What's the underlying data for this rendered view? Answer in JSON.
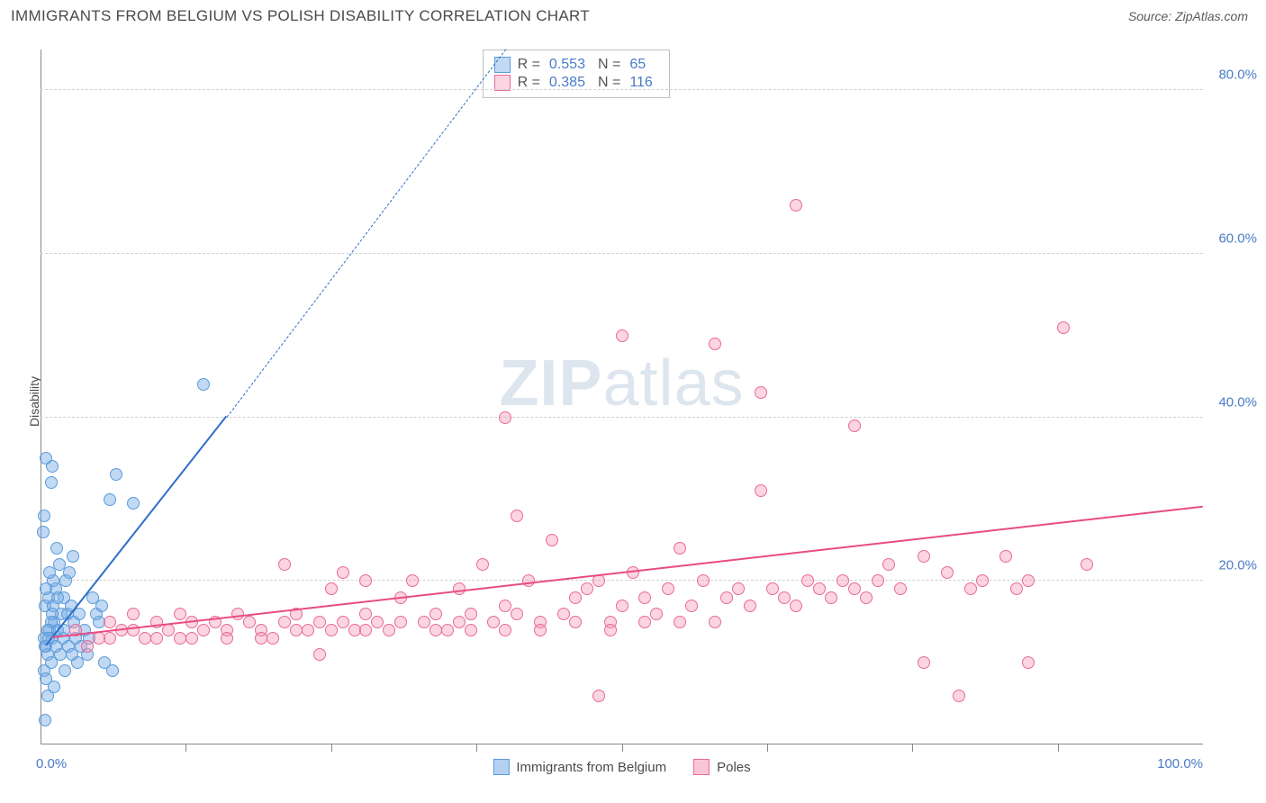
{
  "header": {
    "title": "IMMIGRANTS FROM BELGIUM VS POLISH DISABILITY CORRELATION CHART",
    "source_label": "Source: ZipAtlas.com"
  },
  "ylabel": "Disability",
  "watermark": {
    "bold": "ZIP",
    "rest": "atlas"
  },
  "chart": {
    "type": "scatter",
    "xlim": [
      0,
      100
    ],
    "ylim": [
      0,
      85
    ],
    "yticks": [
      20,
      40,
      60,
      80
    ],
    "ytick_labels": [
      "20.0%",
      "40.0%",
      "60.0%",
      "80.0%"
    ],
    "xticks": [
      0,
      12.5,
      25,
      37.5,
      50,
      62.5,
      75,
      87.5,
      100
    ],
    "x_min_label": "0.0%",
    "x_max_label": "100.0%",
    "grid_color": "#d8d8d8",
    "series": [
      {
        "name": "Immigrants from Belgium",
        "fill": "rgba(120,170,230,0.45)",
        "stroke": "#5a9bd8",
        "line_color": "#2d6fc9",
        "R": "0.553",
        "N": "65",
        "trend": {
          "x1": 0.5,
          "y1": 12,
          "x2": 16,
          "y2": 40
        },
        "trend_dash": {
          "x1": 16,
          "y1": 40,
          "x2": 40,
          "y2": 85
        },
        "points": [
          [
            0.5,
            12
          ],
          [
            0.8,
            14
          ],
          [
            1,
            13
          ],
          [
            1.2,
            15
          ],
          [
            0.6,
            11
          ],
          [
            0.9,
            10
          ],
          [
            1.5,
            14
          ],
          [
            1.8,
            16
          ],
          [
            2,
            18
          ],
          [
            1.3,
            19
          ],
          [
            2.2,
            20
          ],
          [
            2.5,
            21
          ],
          [
            0.4,
            17
          ],
          [
            0.7,
            18
          ],
          [
            1.1,
            20
          ],
          [
            0.3,
            9
          ],
          [
            0.5,
            8
          ],
          [
            3,
            13
          ],
          [
            3.5,
            12
          ],
          [
            4,
            11
          ],
          [
            1.6,
            22
          ],
          [
            2.8,
            23
          ],
          [
            0.2,
            26
          ],
          [
            0.3,
            28
          ],
          [
            0.9,
            32
          ],
          [
            1.0,
            34
          ],
          [
            0.5,
            35
          ],
          [
            6,
            30
          ],
          [
            6.5,
            33
          ],
          [
            8,
            29.5
          ],
          [
            4.5,
            18
          ],
          [
            5,
            15
          ],
          [
            2.3,
            16
          ],
          [
            1.9,
            13
          ],
          [
            0.6,
            6
          ],
          [
            1.2,
            7
          ],
          [
            2.1,
            9
          ],
          [
            3.2,
            10
          ],
          [
            0.4,
            3
          ],
          [
            14,
            44
          ],
          [
            5.5,
            10
          ],
          [
            6.2,
            9
          ],
          [
            3.8,
            14
          ],
          [
            4.2,
            13
          ],
          [
            2.6,
            17
          ],
          [
            1.4,
            24
          ],
          [
            0.8,
            21
          ],
          [
            1.7,
            11
          ],
          [
            2.4,
            12
          ],
          [
            0.3,
            13
          ],
          [
            0.9,
            15
          ],
          [
            1.1,
            17
          ],
          [
            1.5,
            18
          ],
          [
            0.6,
            14
          ],
          [
            0.4,
            12
          ],
          [
            2.0,
            14
          ],
          [
            2.9,
            15
          ],
          [
            3.3,
            16
          ],
          [
            0.5,
            19
          ],
          [
            1.0,
            16
          ],
          [
            1.3,
            12
          ],
          [
            0.7,
            13
          ],
          [
            2.7,
            11
          ],
          [
            4.8,
            16
          ],
          [
            5.3,
            17
          ]
        ]
      },
      {
        "name": "Poles",
        "fill": "rgba(245,150,180,0.40)",
        "stroke": "#e86a98",
        "line_color": "#e94b85",
        "R": "0.385",
        "N": "116",
        "trend": {
          "x1": 1,
          "y1": 13,
          "x2": 100,
          "y2": 29
        },
        "points": [
          [
            3,
            14
          ],
          [
            5,
            13
          ],
          [
            6,
            15
          ],
          [
            7,
            14
          ],
          [
            8,
            16
          ],
          [
            9,
            13
          ],
          [
            10,
            15
          ],
          [
            11,
            14
          ],
          [
            12,
            16
          ],
          [
            12,
            13
          ],
          [
            13,
            15
          ],
          [
            14,
            14
          ],
          [
            15,
            15
          ],
          [
            16,
            14
          ],
          [
            17,
            16
          ],
          [
            18,
            15
          ],
          [
            19,
            14
          ],
          [
            20,
            13
          ],
          [
            21,
            22
          ],
          [
            21,
            15
          ],
          [
            22,
            16
          ],
          [
            23,
            14
          ],
          [
            24,
            15
          ],
          [
            24,
            11
          ],
          [
            25,
            19
          ],
          [
            26,
            21
          ],
          [
            26,
            15
          ],
          [
            27,
            14
          ],
          [
            28,
            16
          ],
          [
            28,
            20
          ],
          [
            29,
            15
          ],
          [
            30,
            14
          ],
          [
            31,
            18
          ],
          [
            32,
            20
          ],
          [
            33,
            15
          ],
          [
            34,
            16
          ],
          [
            35,
            14
          ],
          [
            36,
            19
          ],
          [
            36,
            15
          ],
          [
            37,
            16
          ],
          [
            38,
            22
          ],
          [
            39,
            15
          ],
          [
            40,
            17
          ],
          [
            40,
            40
          ],
          [
            41,
            16
          ],
          [
            41,
            28
          ],
          [
            42,
            20
          ],
          [
            43,
            15
          ],
          [
            44,
            25
          ],
          [
            45,
            16
          ],
          [
            46,
            18
          ],
          [
            47,
            19
          ],
          [
            48,
            20
          ],
          [
            48,
            6
          ],
          [
            49,
            15
          ],
          [
            50,
            17
          ],
          [
            50,
            50
          ],
          [
            51,
            21
          ],
          [
            52,
            18
          ],
          [
            53,
            16
          ],
          [
            54,
            19
          ],
          [
            55,
            24
          ],
          [
            56,
            17
          ],
          [
            57,
            20
          ],
          [
            58,
            49
          ],
          [
            58,
            15
          ],
          [
            59,
            18
          ],
          [
            60,
            19
          ],
          [
            61,
            17
          ],
          [
            62,
            31
          ],
          [
            62,
            43
          ],
          [
            63,
            19
          ],
          [
            64,
            18
          ],
          [
            65,
            66
          ],
          [
            65,
            17
          ],
          [
            66,
            20
          ],
          [
            67,
            19
          ],
          [
            68,
            18
          ],
          [
            69,
            20
          ],
          [
            70,
            19
          ],
          [
            70,
            39
          ],
          [
            71,
            18
          ],
          [
            72,
            20
          ],
          [
            73,
            22
          ],
          [
            74,
            19
          ],
          [
            76,
            10
          ],
          [
            76,
            23
          ],
          [
            78,
            21
          ],
          [
            79,
            6
          ],
          [
            80,
            19
          ],
          [
            81,
            20
          ],
          [
            83,
            23
          ],
          [
            84,
            19
          ],
          [
            85,
            20
          ],
          [
            85,
            10
          ],
          [
            88,
            51
          ],
          [
            90,
            22
          ],
          [
            4,
            12
          ],
          [
            6,
            13
          ],
          [
            8,
            14
          ],
          [
            10,
            13
          ],
          [
            13,
            13
          ],
          [
            16,
            13
          ],
          [
            19,
            13
          ],
          [
            22,
            14
          ],
          [
            25,
            14
          ],
          [
            28,
            14
          ],
          [
            31,
            15
          ],
          [
            34,
            14
          ],
          [
            37,
            14
          ],
          [
            40,
            14
          ],
          [
            43,
            14
          ],
          [
            46,
            15
          ],
          [
            49,
            14
          ],
          [
            52,
            15
          ],
          [
            55,
            15
          ]
        ]
      }
    ]
  },
  "legend_bottom": [
    {
      "label": "Immigrants from Belgium",
      "fill": "rgba(120,170,230,0.55)",
      "stroke": "#5a9bd8"
    },
    {
      "label": "Poles",
      "fill": "rgba(245,150,180,0.55)",
      "stroke": "#e86a98"
    }
  ]
}
